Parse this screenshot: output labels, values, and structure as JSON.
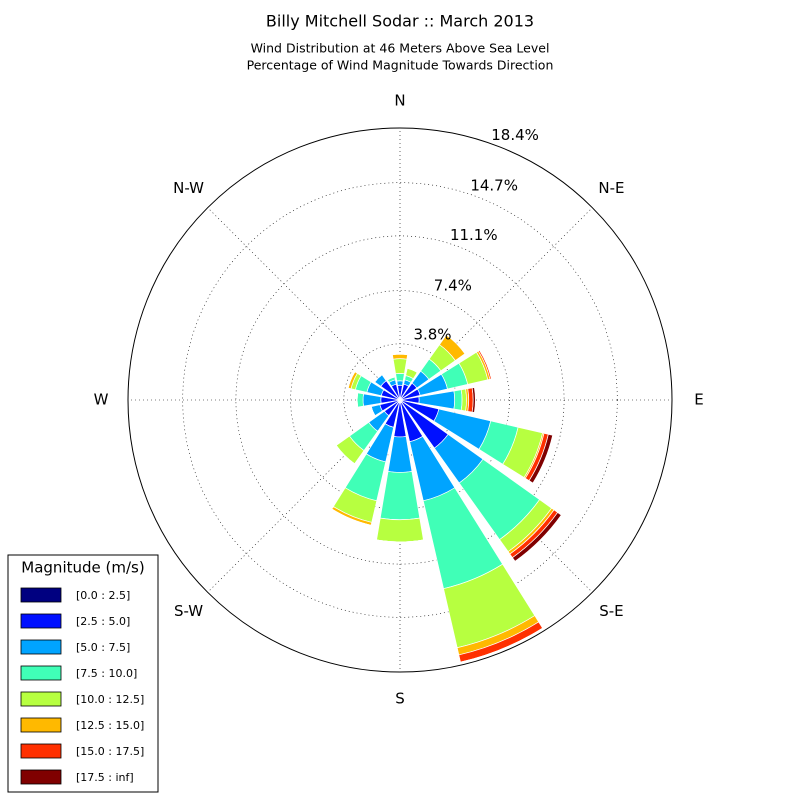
{
  "chart_data": {
    "type": "windrose",
    "title": "Billy Mitchell Sodar :: March 2013",
    "subtitle": [
      "Wind Distribution at 46 Meters Above Sea Level",
      "Percentage of Wind Magnitude Towards Direction"
    ],
    "categories": [
      "N",
      null,
      "N-E",
      null,
      "E",
      null,
      "S-E",
      null,
      "S",
      null,
      "S-W",
      null,
      "W",
      null,
      "N-W",
      null
    ],
    "legend_title": "Magnitude (m/s)",
    "legend": "lower left",
    "grid": true,
    "ylim": [
      0,
      18.4
    ],
    "yticks": [
      {
        "value": 3.8,
        "label": "3.8%"
      },
      {
        "value": 7.4,
        "label": "7.4%"
      },
      {
        "value": 11.1,
        "label": "11.1%"
      },
      {
        "value": 14.7,
        "label": "14.7%"
      },
      {
        "value": 18.4,
        "label": "18.4%"
      }
    ],
    "series": [
      {
        "name": "[0.0 : 2.5]",
        "color": "#000080",
        "values": [
          0.1,
          0.1,
          0.1,
          0.1,
          0.1,
          0.1,
          0.2,
          0.2,
          0.2,
          0.2,
          0.1,
          0.1,
          0.1,
          0.1,
          0.1,
          0.1
        ]
      },
      {
        "name": "[2.5 : 5.0]",
        "color": "#0010ff",
        "values": [
          0.9,
          1.0,
          1.3,
          1.3,
          1.2,
          2.6,
          3.8,
          2.7,
          2.3,
          1.7,
          1.2,
          1.3,
          1.2,
          1.2,
          1.5,
          1.0
        ]
      },
      {
        "name": "[5.0 : 7.5]",
        "color": "#00a4ff",
        "values": [
          0.3,
          0.3,
          1.0,
          1.9,
          2.4,
          3.6,
          2.9,
          4.1,
          2.4,
          2.4,
          1.3,
          0.6,
          1.2,
          1.0,
          0.5,
          0.3
        ]
      },
      {
        "name": "[7.5 : 10.0]",
        "color": "#40ffb7",
        "values": [
          0.5,
          0.3,
          1.0,
          1.4,
          0.5,
          1.9,
          4.7,
          6.1,
          3.2,
          2.7,
          1.6,
          0,
          0.4,
          0.8,
          0,
          0.2
        ]
      },
      {
        "name": "[10.0 : 12.5]",
        "color": "#b7ff40",
        "values": [
          1.0,
          0.5,
          1.2,
          1.4,
          0.3,
          1.7,
          1.0,
          4.1,
          1.5,
          1.5,
          1.1,
          0,
          0,
          0.3,
          0,
          0
        ]
      },
      {
        "name": "[12.5 : 15.0]",
        "color": "#ffb900",
        "values": [
          0.3,
          0,
          0.8,
          0.15,
          0.15,
          0.1,
          0.2,
          0.5,
          0,
          0.2,
          0,
          0,
          0,
          0.2,
          0,
          0
        ]
      },
      {
        "name": "[15.0 : 17.5]",
        "color": "#ff3000",
        "values": [
          0,
          0,
          0,
          0.1,
          0.3,
          0.3,
          0.3,
          0.5,
          0,
          0,
          0,
          0,
          0,
          0,
          0,
          0
        ]
      },
      {
        "name": "[17.5 : inf]",
        "color": "#800000",
        "values": [
          0,
          0,
          0,
          0,
          0.15,
          0.3,
          0.3,
          0,
          0,
          0,
          0,
          0,
          0,
          0,
          0,
          0
        ]
      }
    ]
  }
}
